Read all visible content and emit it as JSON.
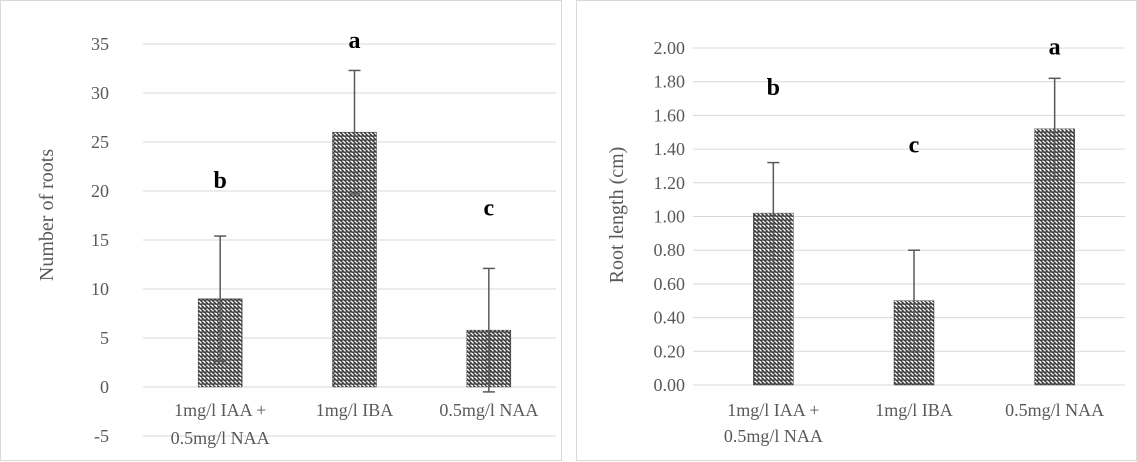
{
  "chart_data": [
    {
      "type": "bar",
      "categories": [
        "1mg/l IAA + 0.5mg/l NAA",
        "1mg/l IBA",
        "0.5mg/l NAA"
      ],
      "category_lines": [
        [
          "1mg/l IAA +",
          "0.5mg/l NAA"
        ],
        [
          "1mg/l IBA"
        ],
        [
          "0.5mg/l NAA"
        ]
      ],
      "values": [
        9.0,
        26.0,
        5.8
      ],
      "error": [
        6.4,
        6.3,
        6.3
      ],
      "significance": [
        "b",
        "a",
        "c"
      ],
      "significance_y": [
        20.3,
        34.6,
        17.5
      ],
      "ylabel": "Number of roots",
      "xlabel": "",
      "ylim": [
        -5,
        35
      ],
      "yticks": [
        -5,
        0,
        5,
        10,
        15,
        20,
        25,
        30,
        35
      ],
      "ytick_decimals": 0,
      "grid": true,
      "bar_pattern": "zigzag",
      "colors": {
        "pattern": "#404040",
        "grid": "#d9d9d9",
        "error": "#595959",
        "text": "#595959"
      }
    },
    {
      "type": "bar",
      "categories": [
        "1mg/l IAA + 0.5mg/l NAA",
        "1mg/l IBA",
        "0.5mg/l NAA"
      ],
      "category_lines": [
        [
          "1mg/l IAA +",
          "0.5mg/l NAA"
        ],
        [
          "1mg/l IBA"
        ],
        [
          "0.5mg/l NAA"
        ]
      ],
      "values": [
        1.02,
        0.5,
        1.52
      ],
      "error": [
        0.3,
        0.3,
        0.3
      ],
      "significance": [
        "b",
        "c",
        "a"
      ],
      "significance_y": [
        1.72,
        1.38,
        1.96
      ],
      "ylabel": "Root length (cm)",
      "xlabel": "",
      "ylim": [
        0,
        2.0
      ],
      "yticks": [
        0,
        0.2,
        0.4,
        0.6,
        0.8,
        1.0,
        1.2,
        1.4,
        1.6,
        1.8,
        2.0
      ],
      "ytick_decimals": 2,
      "grid": true,
      "bar_pattern": "zigzag",
      "colors": {
        "pattern": "#404040",
        "grid": "#d9d9d9",
        "error": "#595959",
        "text": "#595959"
      }
    }
  ]
}
